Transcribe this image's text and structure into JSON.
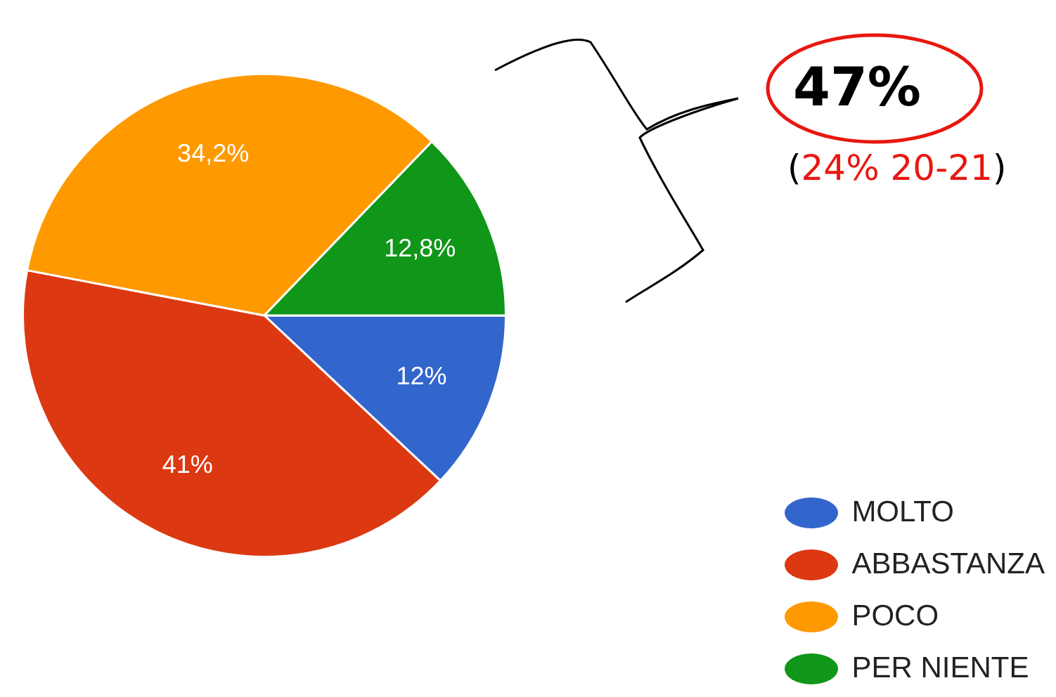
{
  "chart_data": {
    "type": "pie",
    "categories": [
      "MOLTO",
      "ABBASTANZA",
      "POCO",
      "PER NIENTE"
    ],
    "values": [
      12,
      41,
      34.2,
      12.8
    ],
    "value_labels": [
      "12%",
      "41%",
      "34,2%",
      "12,8%"
    ],
    "colors": [
      "#3366cc",
      "#dc3912",
      "#ff9900",
      "#109618"
    ],
    "legend": "bottom right",
    "annotations": [
      "47%",
      "(24% 20-21)"
    ]
  }
}
